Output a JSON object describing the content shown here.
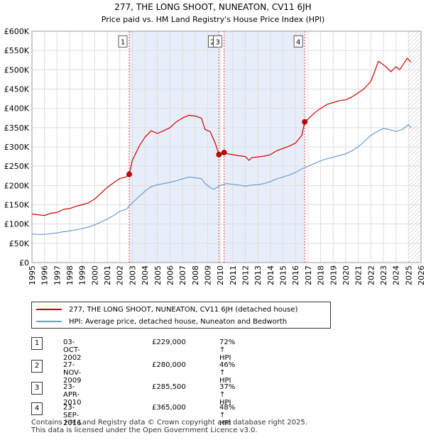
{
  "chart_data": {
    "type": "line",
    "title": "277, THE LONG SHOOT, NUNEATON, CV11 6JH",
    "subtitle": "Price paid vs. HM Land Registry's House Price Index (HPI)",
    "ylim": [
      0,
      600000
    ],
    "xlim": [
      1995,
      2026
    ],
    "y_ticks": [
      0,
      50000,
      100000,
      150000,
      200000,
      250000,
      300000,
      350000,
      400000,
      450000,
      500000,
      550000,
      600000
    ],
    "y_tick_labels": [
      "£0",
      "£50K",
      "£100K",
      "£150K",
      "£200K",
      "£250K",
      "£300K",
      "£350K",
      "£400K",
      "£450K",
      "£500K",
      "£550K",
      "£600K"
    ],
    "x_ticks": [
      1995,
      1996,
      1997,
      1998,
      1999,
      2000,
      2001,
      2002,
      2003,
      2004,
      2005,
      2006,
      2007,
      2008,
      2009,
      2010,
      2011,
      2012,
      2013,
      2014,
      2015,
      2016,
      2017,
      2018,
      2019,
      2020,
      2021,
      2022,
      2023,
      2024,
      2025,
      2026
    ],
    "x_tick_labels": [
      "1995",
      "1996",
      "1997",
      "1998",
      "1999",
      "2000",
      "2001",
      "2002",
      "2003",
      "2004",
      "2005",
      "2006",
      "2007",
      "2008",
      "2009",
      "2010",
      "2011",
      "2012",
      "2013",
      "2014",
      "2015",
      "2016",
      "2017",
      "2018",
      "2019",
      "2020",
      "2021",
      "2022",
      "2023",
      "2024",
      "2025",
      "2026"
    ],
    "shaded_ranges": [
      [
        2002.75,
        2009.9
      ],
      [
        2010.31,
        2016.73
      ]
    ],
    "future_hatch_from": 2025.0,
    "series": [
      {
        "name": "277, THE LONG SHOOT, NUNEATON, CV11 6JH (detached house)",
        "color": "#cc0000",
        "x": [
          1995.0,
          1995.5,
          1996.0,
          1996.5,
          1997.0,
          1997.5,
          1998.0,
          1998.5,
          1999.0,
          1999.5,
          2000.0,
          2000.5,
          2001.0,
          2001.5,
          2002.0,
          2002.5,
          2002.75,
          2003.0,
          2003.3,
          2003.6,
          2004.0,
          2004.5,
          2005.0,
          2005.5,
          2006.0,
          2006.5,
          2007.0,
          2007.5,
          2008.0,
          2008.5,
          2008.8,
          2009.2,
          2009.6,
          2009.9,
          2010.1,
          2010.31,
          2010.6,
          2011.0,
          2011.5,
          2012.0,
          2012.3,
          2012.5,
          2013.0,
          2013.5,
          2014.0,
          2014.5,
          2015.0,
          2015.5,
          2016.0,
          2016.5,
          2016.73,
          2017.0,
          2017.5,
          2018.0,
          2018.5,
          2019.0,
          2019.5,
          2020.0,
          2020.5,
          2021.0,
          2021.5,
          2022.0,
          2022.3,
          2022.6,
          2023.0,
          2023.3,
          2023.6,
          2024.0,
          2024.3,
          2024.6,
          2024.9,
          2025.2
        ],
        "values": [
          126000,
          124000,
          122000,
          128000,
          130000,
          138000,
          140000,
          146000,
          150000,
          155000,
          165000,
          180000,
          195000,
          207000,
          218000,
          222000,
          229000,
          265000,
          285000,
          305000,
          325000,
          342000,
          335000,
          342000,
          350000,
          365000,
          375000,
          382000,
          380000,
          375000,
          345000,
          340000,
          310000,
          280000,
          282000,
          285500,
          282000,
          280000,
          277000,
          275000,
          265000,
          272000,
          274000,
          276000,
          280000,
          290000,
          296000,
          302000,
          310000,
          330000,
          365000,
          372000,
          388000,
          400000,
          410000,
          415000,
          420000,
          422000,
          430000,
          440000,
          452000,
          470000,
          495000,
          522000,
          513000,
          505000,
          495000,
          508000,
          500000,
          515000,
          530000,
          520000
        ]
      },
      {
        "name": "HPI: Average price, detached house, Nuneaton and Bedworth",
        "color": "#6b9bd1",
        "x": [
          1995.0,
          1995.5,
          1996.0,
          1996.5,
          1997.0,
          1997.5,
          1998.0,
          1998.5,
          1999.0,
          1999.5,
          2000.0,
          2000.5,
          2001.0,
          2001.5,
          2002.0,
          2002.5,
          2003.0,
          2003.5,
          2004.0,
          2004.5,
          2005.0,
          2005.5,
          2006.0,
          2006.5,
          2007.0,
          2007.5,
          2008.0,
          2008.5,
          2008.8,
          2009.2,
          2009.5,
          2010.0,
          2010.5,
          2011.0,
          2011.5,
          2012.0,
          2012.5,
          2013.0,
          2013.5,
          2014.0,
          2014.5,
          2015.0,
          2015.5,
          2016.0,
          2016.5,
          2017.0,
          2017.5,
          2018.0,
          2018.5,
          2019.0,
          2019.5,
          2020.0,
          2020.5,
          2021.0,
          2021.5,
          2022.0,
          2022.5,
          2023.0,
          2023.5,
          2024.0,
          2024.5,
          2025.0,
          2025.2
        ],
        "values": [
          74000,
          73000,
          73000,
          75000,
          77000,
          80000,
          82000,
          85000,
          88000,
          92000,
          98000,
          105000,
          113000,
          122000,
          133000,
          138000,
          155000,
          170000,
          185000,
          197000,
          202000,
          205000,
          208000,
          212000,
          217000,
          222000,
          220000,
          218000,
          205000,
          195000,
          190000,
          200000,
          205000,
          203000,
          201000,
          198000,
          201000,
          202000,
          205000,
          210000,
          217000,
          222000,
          227000,
          234000,
          243000,
          250000,
          257000,
          264000,
          269000,
          273000,
          278000,
          282000,
          290000,
          300000,
          315000,
          330000,
          340000,
          348000,
          345000,
          340000,
          345000,
          358000,
          350000
        ]
      }
    ],
    "transactions": [
      {
        "label": "1",
        "x": 2002.75,
        "price": 229000,
        "date": "03-OCT-2002",
        "price_label": "£229,000",
        "hpi_label": "72% ↑ HPI"
      },
      {
        "label": "2",
        "x": 2009.9,
        "price": 280000,
        "date": "27-NOV-2009",
        "price_label": "£280,000",
        "hpi_label": "46% ↑ HPI"
      },
      {
        "label": "3",
        "x": 2010.31,
        "price": 285500,
        "date": "23-APR-2010",
        "price_label": "£285,500",
        "hpi_label": "37% ↑ HPI"
      },
      {
        "label": "4",
        "x": 2016.73,
        "price": 365000,
        "date": "23-SEP-2016",
        "price_label": "£365,000",
        "hpi_label": "48% ↑ HPI"
      }
    ],
    "marker_label_y": 570000
  },
  "legend": {
    "entries": [
      {
        "label": "277, THE LONG SHOOT, NUNEATON, CV11 6JH (detached house)",
        "color": "#cc0000"
      },
      {
        "label": "HPI: Average price, detached house, Nuneaton and Bedworth",
        "color": "#6b9bd1"
      }
    ]
  },
  "footer": {
    "line1": "Contains HM Land Registry data © Crown copyright and database right 2025.",
    "line2": "This data is licensed under the Open Government Licence v3.0."
  }
}
